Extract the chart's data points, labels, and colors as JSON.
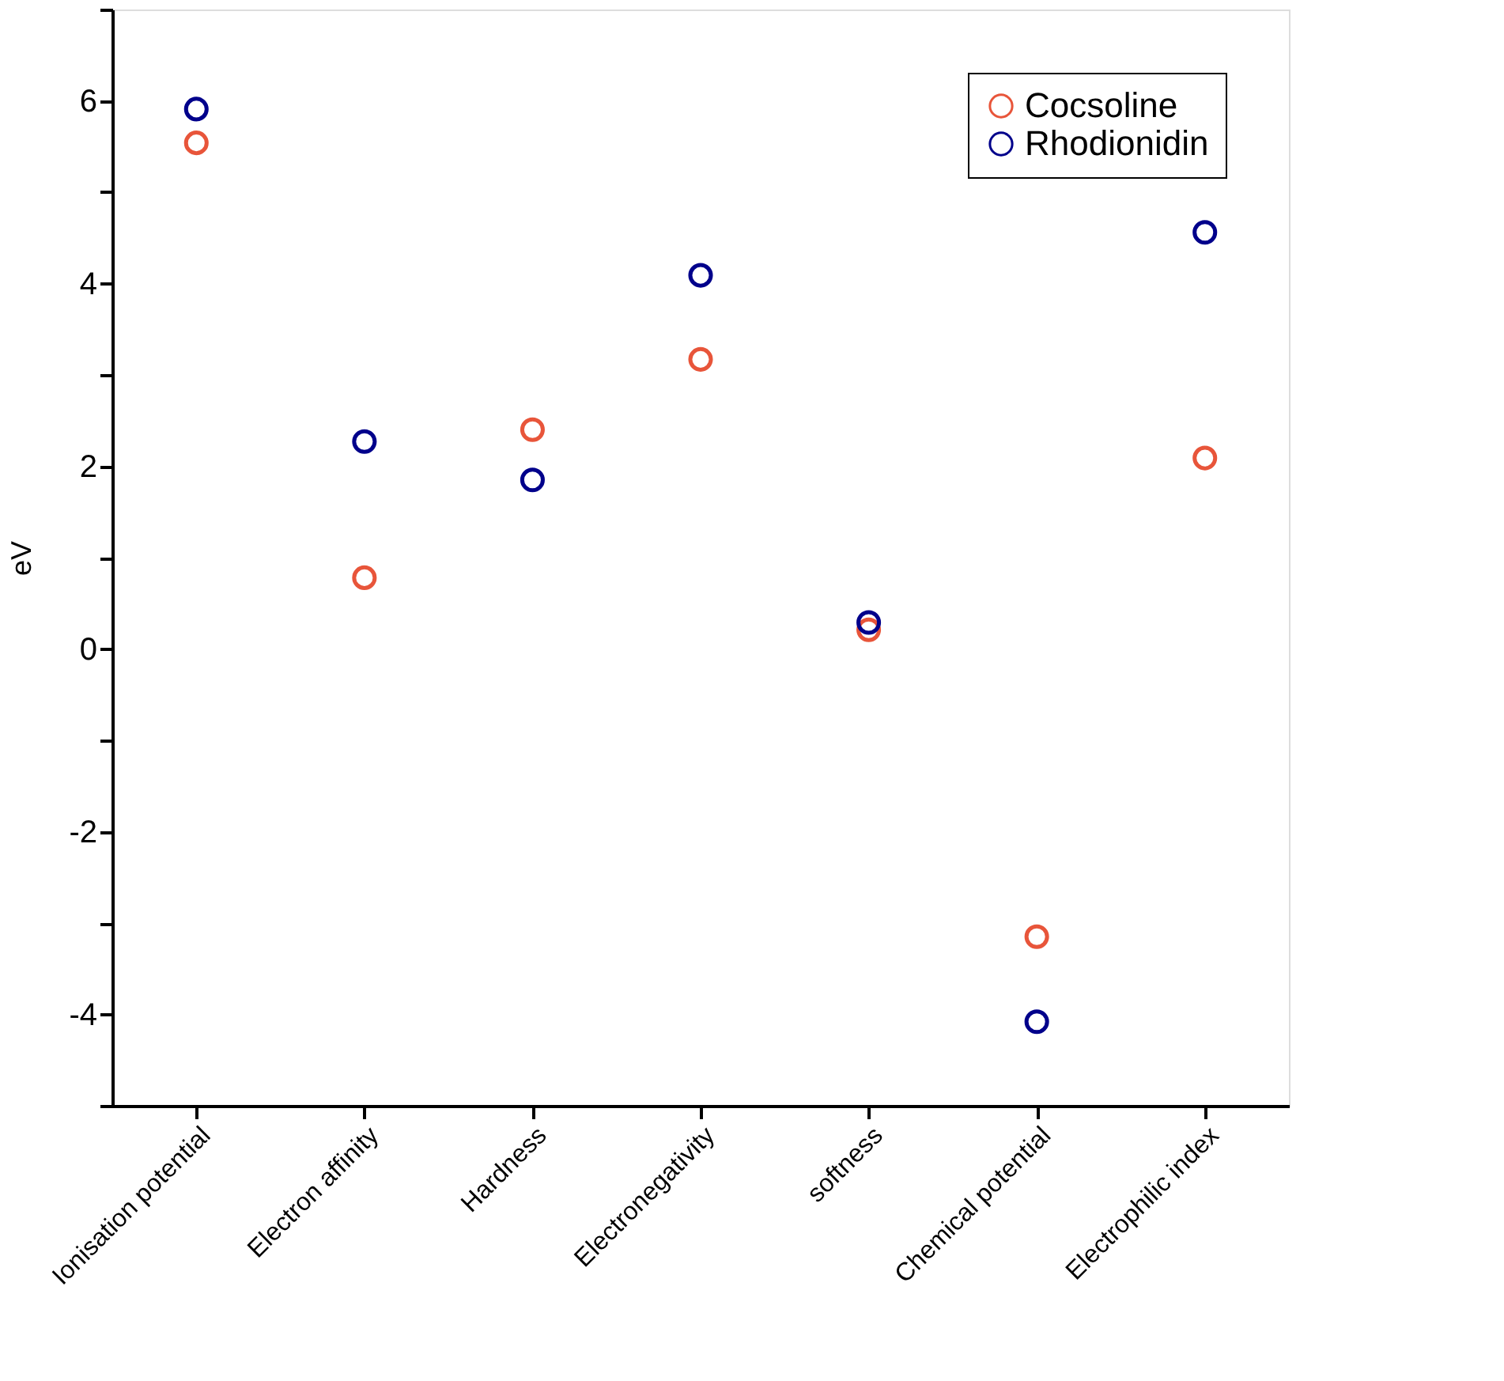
{
  "chart_data": {
    "type": "scatter",
    "ylabel": "eV",
    "categories": [
      "Ionisation potential",
      "Electron affinity",
      "Hardness",
      "Electronegativity",
      "softness",
      "Chemical potential",
      "Electrophilic index"
    ],
    "series": [
      {
        "name": "Cocsoline",
        "color": "#e8553a",
        "values": [
          5.54,
          0.78,
          2.4,
          3.17,
          0.21,
          -3.15,
          2.09
        ]
      },
      {
        "name": "Rhodionidin",
        "color": "#00008b",
        "values": [
          5.91,
          2.27,
          1.85,
          4.09,
          0.29,
          -4.08,
          4.56
        ]
      }
    ],
    "ylim": [
      -5,
      7
    ],
    "yticks": [
      {
        "value": -5,
        "label": null
      },
      -4,
      {
        "value": -3,
        "label": null
      },
      -2,
      {
        "value": -1,
        "label": null
      },
      0,
      {
        "value": 1,
        "label": null
      },
      2,
      {
        "value": 3,
        "label": null
      },
      4,
      {
        "value": 5,
        "label": null
      },
      6,
      {
        "value": 7,
        "label": null
      }
    ],
    "grid": false,
    "legend": "top right",
    "marker": "circle"
  }
}
